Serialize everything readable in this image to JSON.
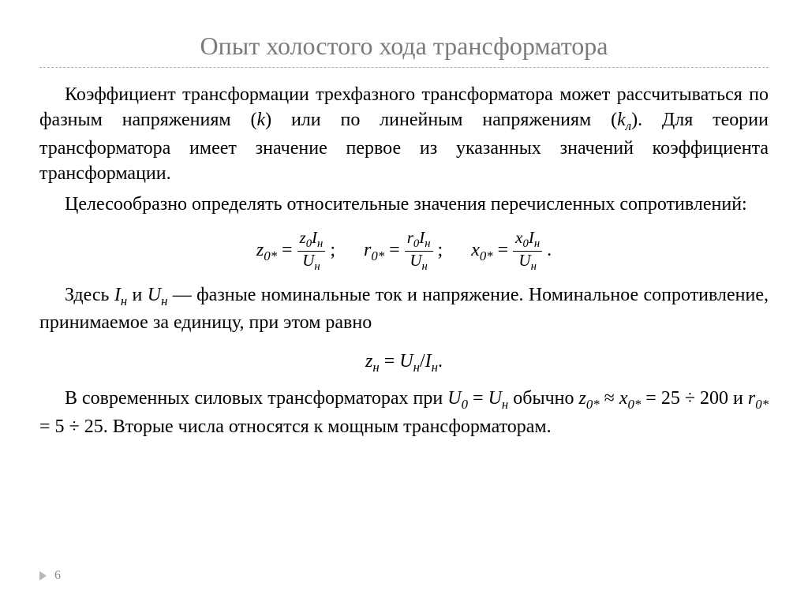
{
  "title": "Опыт холостого хода трансформатора",
  "para1a": "Коэффициент трансформации трехфазного трансформатора может рассчитываться по фазным напряжениям (",
  "para1b": ") или по линейным напряжениям (",
  "para1c": "). Для теории трансформатора имеет значение первое из указанных значений коэффициента трансформации.",
  "k_phase": "k",
  "k_line": "k",
  "k_line_sub": "л",
  "para2": "Целесообразно определять относительные значения перечисленных сопротивлений:",
  "f1": {
    "lhs": "z",
    "lhs_sub": "0*",
    "num_a": "z",
    "num_a_sub": "0",
    "num_b": "I",
    "num_b_sub": "н",
    "den": "U",
    "den_sub": "н"
  },
  "f2": {
    "lhs": "r",
    "lhs_sub": "0*",
    "num_a": "r",
    "num_a_sub": "0",
    "num_b": "I",
    "num_b_sub": "н",
    "den": "U",
    "den_sub": "н"
  },
  "f3": {
    "lhs": "x",
    "lhs_sub": "0*",
    "num_a": "x",
    "num_a_sub": "0",
    "num_b": "I",
    "num_b_sub": "н",
    "den": "U",
    "den_sub": "н"
  },
  "para3a": "Здесь ",
  "para3_I": "I",
  "para3_I_sub": "н",
  "para3_and": " и ",
  "para3_U": "U",
  "para3_U_sub": "н",
  "para3b": " — фазные номинальные ток и напряжение. Номинальное сопротивление, принимаемое за единицу, при этом равно",
  "f4_lhs": "z",
  "f4_lhs_sub": "н",
  "f4_eq": " = ",
  "f4_U": "U",
  "f4_U_sub": "н",
  "f4_slash": "/",
  "f4_I": "I",
  "f4_I_sub": "н",
  "f4_dot": ".",
  "para4a": "В современных силовых трансформаторах при ",
  "p4_U0": "U",
  "p4_U0_sub": "0",
  "p4_eq1": " = ",
  "p4_Un": "U",
  "p4_Un_sub": "н",
  "para4b": " обычно ",
  "p4_z": "z",
  "p4_z_sub": "0*",
  "p4_approx": " ≈ ",
  "p4_x": "x",
  "p4_x_sub": "0*",
  "p4_eq2": " = 25 ÷ 200 и ",
  "p4_r": "r",
  "p4_r_sub": "0*",
  "p4_eq3": " = 5 ÷ 25. ",
  "para4c": "Вторые числа относятся к мощным трансформаторам.",
  "page_number": "6",
  "colors": {
    "title": "#7a7a7a",
    "text": "#000000",
    "rule": "#b0b0b0",
    "footer": "#888888",
    "background": "#ffffff"
  },
  "typography": {
    "title_fontsize": 32,
    "body_fontsize": 24,
    "formula_fontsize": 24,
    "frac_fontsize": 21,
    "footer_fontsize": 16,
    "font_family": "Times New Roman / Georgia serif"
  }
}
